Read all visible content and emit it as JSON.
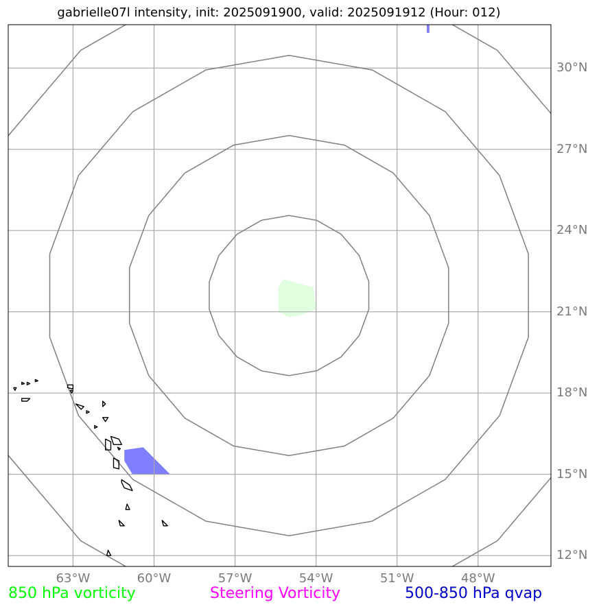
{
  "title": "gabrielle07l intensity, init: 2025091900, valid: 2025091912 (Hour: 012)",
  "map": {
    "lon_range": [
      -65.4,
      -45.3
    ],
    "lat_range": [
      11.6,
      31.6
    ],
    "center": {
      "lon": -55,
      "lat": 21.6
    },
    "range_rings_deg": [
      3,
      6,
      9,
      12
    ],
    "ring_color": "#808080",
    "grid_color": "#a6a6a6",
    "coast_color": "#000000",
    "lon_ticks": [
      {
        "value": -63,
        "label": "63°W"
      },
      {
        "value": -60,
        "label": "60°W"
      },
      {
        "value": -57,
        "label": "57°W"
      },
      {
        "value": -54,
        "label": "54°W"
      },
      {
        "value": -51,
        "label": "51°W"
      },
      {
        "value": -48,
        "label": "48°W"
      }
    ],
    "lat_ticks": [
      {
        "value": 30,
        "label": "30°N"
      },
      {
        "value": 27,
        "label": "27°N"
      },
      {
        "value": 24,
        "label": "24°N"
      },
      {
        "value": 21,
        "label": "21°N"
      },
      {
        "value": 18,
        "label": "18°N"
      },
      {
        "value": 15,
        "label": "15°N"
      },
      {
        "value": 12,
        "label": "12°N"
      }
    ],
    "fields": [
      {
        "name": "850 hPa vorticity area",
        "color": "#dfffdf",
        "points": [
          [
            -55.2,
            22.2
          ],
          [
            -54.1,
            21.9
          ],
          [
            -54.0,
            21.1
          ],
          [
            -54.5,
            20.9
          ],
          [
            -55.0,
            20.8
          ],
          [
            -55.4,
            21.0
          ],
          [
            -55.4,
            21.9
          ]
        ]
      },
      {
        "name": "500-850 hPa qvap area",
        "color": "#8080ff",
        "points": [
          [
            -61.1,
            15.9
          ],
          [
            -60.4,
            16.0
          ],
          [
            -59.4,
            15.0
          ],
          [
            -60.8,
            15.0
          ],
          [
            -61.1,
            15.5
          ]
        ]
      },
      {
        "name": "500-850 hPa qvap top",
        "color": "#8080ff",
        "points": [
          [
            -49.9,
            31.6
          ],
          [
            -49.8,
            31.6
          ],
          [
            -49.8,
            31.3
          ],
          [
            -49.9,
            31.3
          ]
        ]
      }
    ],
    "islands": [
      [
        [
          -63.2,
          18.3
        ],
        [
          -63.0,
          18.3
        ],
        [
          -63.0,
          18.15
        ],
        [
          -63.2,
          18.2
        ]
      ],
      [
        [
          -63.1,
          18.1
        ],
        [
          -63.0,
          18.1
        ],
        [
          -63.05,
          18.0
        ]
      ],
      [
        [
          -62.9,
          17.6
        ],
        [
          -62.6,
          17.5
        ],
        [
          -62.7,
          17.4
        ]
      ],
      [
        [
          -62.5,
          17.35
        ],
        [
          -62.4,
          17.3
        ],
        [
          -62.5,
          17.25
        ]
      ],
      [
        [
          -61.9,
          17.7
        ],
        [
          -61.8,
          17.6
        ],
        [
          -61.9,
          17.5
        ]
      ],
      [
        [
          -61.9,
          17.1
        ],
        [
          -61.7,
          17.1
        ],
        [
          -61.8,
          16.95
        ]
      ],
      [
        [
          -62.2,
          16.8
        ],
        [
          -62.1,
          16.75
        ],
        [
          -62.2,
          16.7
        ]
      ],
      [
        [
          -61.6,
          16.4
        ],
        [
          -61.3,
          16.3
        ],
        [
          -61.2,
          16.1
        ],
        [
          -61.5,
          16.1
        ]
      ],
      [
        [
          -61.8,
          16.3
        ],
        [
          -61.6,
          16.2
        ],
        [
          -61.6,
          15.9
        ],
        [
          -61.8,
          15.9
        ]
      ],
      [
        [
          -61.35,
          16.0
        ],
        [
          -61.25,
          15.95
        ],
        [
          -61.3,
          15.9
        ]
      ],
      [
        [
          -61.5,
          15.6
        ],
        [
          -61.3,
          15.5
        ],
        [
          -61.3,
          15.2
        ],
        [
          -61.5,
          15.25
        ]
      ],
      [
        [
          -61.2,
          14.8
        ],
        [
          -60.9,
          14.6
        ],
        [
          -60.8,
          14.4
        ],
        [
          -61.1,
          14.5
        ],
        [
          -61.2,
          14.7
        ]
      ],
      [
        [
          -61.0,
          13.9
        ],
        [
          -60.9,
          13.7
        ],
        [
          -61.05,
          13.7
        ]
      ],
      [
        [
          -61.3,
          13.3
        ],
        [
          -61.1,
          13.1
        ],
        [
          -61.25,
          13.1
        ]
      ],
      [
        [
          -59.7,
          13.3
        ],
        [
          -59.5,
          13.1
        ],
        [
          -59.65,
          13.1
        ]
      ],
      [
        [
          -61.7,
          12.2
        ],
        [
          -61.6,
          12.0
        ],
        [
          -61.75,
          12.0
        ]
      ],
      [
        [
          -64.7,
          18.4
        ],
        [
          -64.6,
          18.35
        ],
        [
          -64.7,
          18.3
        ]
      ],
      [
        [
          -64.9,
          18.4
        ],
        [
          -64.8,
          18.35
        ],
        [
          -64.9,
          18.32
        ]
      ],
      [
        [
          -64.4,
          18.5
        ],
        [
          -64.3,
          18.45
        ],
        [
          -64.4,
          18.42
        ]
      ],
      [
        [
          -65.2,
          18.2
        ],
        [
          -65.1,
          18.2
        ],
        [
          -65.15,
          18.1
        ]
      ],
      [
        [
          -64.9,
          17.8
        ],
        [
          -64.6,
          17.8
        ],
        [
          -64.7,
          17.7
        ],
        [
          -64.9,
          17.7
        ]
      ]
    ]
  },
  "legend": [
    {
      "label": "850 hPa vorticity",
      "color": "#00ff00"
    },
    {
      "label": "Steering Vorticity",
      "color": "#ff00ff"
    },
    {
      "label": "500-850 hPa qvap",
      "color": "#0000cd"
    }
  ]
}
